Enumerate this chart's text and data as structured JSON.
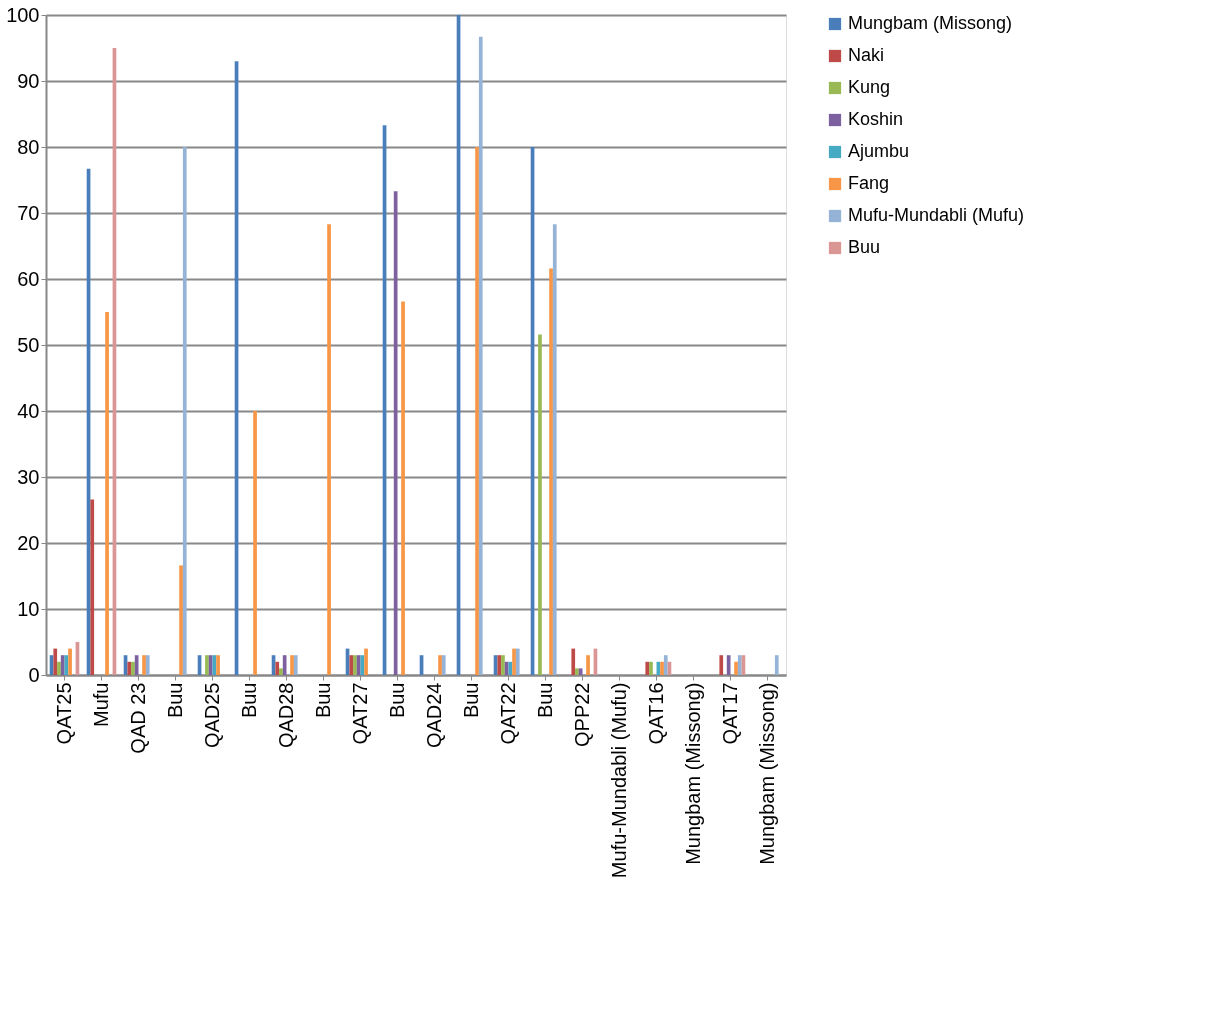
{
  "chart_data": {
    "type": "bar",
    "categories": [
      "QAT25",
      "Mufu",
      "QAD 23",
      "Buu",
      "QAD25",
      "Buu",
      "QAD28",
      "Buu",
      "QAT27",
      "Buu",
      "QAD24",
      "Buu",
      "QAT22",
      "Buu",
      "QPP22",
      "Mufu-Mundabli (Mufu)",
      "QAT16",
      "Mungbam (Missong)",
      "QAT17",
      "Mungbam (Missong)"
    ],
    "series": [
      {
        "name": "Mungbam (Missong)",
        "color": "#4a7ebb",
        "values": [
          3,
          76.7,
          3,
          null,
          3,
          93,
          3,
          null,
          4,
          83.3,
          3,
          100,
          3,
          80,
          null,
          null,
          null,
          null,
          null,
          null
        ]
      },
      {
        "name": "Naki",
        "color": "#be4b48",
        "values": [
          4,
          26.6,
          2,
          null,
          null,
          null,
          2,
          null,
          3,
          null,
          null,
          null,
          3,
          null,
          4,
          null,
          2,
          null,
          3,
          null
        ]
      },
      {
        "name": "Kung",
        "color": "#98b954",
        "values": [
          2,
          null,
          2,
          null,
          3,
          null,
          1,
          null,
          3,
          null,
          null,
          null,
          3,
          51.6,
          1,
          null,
          2,
          null,
          null,
          null
        ]
      },
      {
        "name": "Koshin",
        "color": "#7d60a0",
        "values": [
          3,
          null,
          3,
          null,
          3,
          null,
          3,
          null,
          3,
          73.3,
          null,
          null,
          2,
          null,
          1,
          null,
          null,
          null,
          3,
          null
        ]
      },
      {
        "name": "Ajumbu",
        "color": "#46aac5",
        "values": [
          3,
          null,
          null,
          null,
          3,
          null,
          null,
          null,
          3,
          null,
          null,
          null,
          2,
          null,
          null,
          null,
          2,
          null,
          null,
          null
        ]
      },
      {
        "name": "Fang",
        "color": "#f79646",
        "values": [
          4,
          55,
          3,
          16.6,
          3,
          40,
          3,
          68.3,
          4,
          56.6,
          3,
          80,
          4,
          61.6,
          3,
          null,
          2,
          null,
          2,
          null
        ]
      },
      {
        "name": "Mufu-Mundabli (Mufu)",
        "color": "#95b3d7",
        "values": [
          null,
          null,
          3,
          80,
          null,
          null,
          3,
          null,
          null,
          null,
          3,
          96.7,
          4,
          68.3,
          null,
          null,
          3,
          null,
          3,
          3
        ]
      },
      {
        "name": "Buu",
        "color": "#d99694",
        "values": [
          5,
          95,
          null,
          null,
          null,
          null,
          null,
          null,
          null,
          null,
          null,
          null,
          null,
          null,
          4,
          null,
          2,
          null,
          3,
          null
        ]
      }
    ],
    "ylim": [
      0,
      100
    ],
    "yticks": [
      0,
      10,
      20,
      30,
      40,
      50,
      60,
      70,
      80,
      90,
      100
    ],
    "grid": "y",
    "legend": "right"
  }
}
